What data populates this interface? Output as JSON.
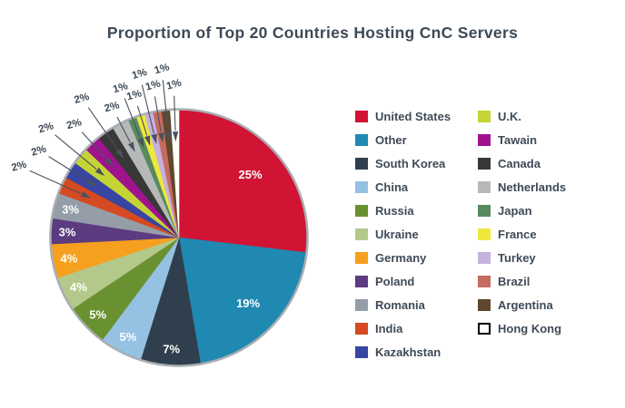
{
  "figure": {
    "background": "#FFFFFF"
  },
  "title": {
    "text": "Proportion of Top 20 Countries Hosting CnC Servers",
    "color": "#3E4A57"
  },
  "styles": {
    "slice_label_color": "#FFFFFF",
    "callout_label_color": "#3E4A57",
    "leader_line_color": "#49525C",
    "pie_rim_color": "#A9ADB2",
    "legend_text_color": "#3E4A57"
  },
  "chart_data": {
    "type": "pie",
    "title": "Proportion of Top 20 Countries Hosting CnC Servers",
    "unit": "%",
    "start_angle_deg": 0,
    "direction": "clockwise",
    "legend_position": "right",
    "legend_columns": 2,
    "legend_column_split": 11,
    "slices": [
      {
        "label": "United States",
        "value": 25,
        "color": "#D11434"
      },
      {
        "label": "Other",
        "value": 19,
        "color": "#1F89B2"
      },
      {
        "label": "South Korea",
        "value": 7,
        "color": "#2F3F4D"
      },
      {
        "label": "China",
        "value": 5,
        "color": "#95C1E3"
      },
      {
        "label": "Russia",
        "value": 5,
        "color": "#6A9130"
      },
      {
        "label": "Ukraine",
        "value": 4,
        "color": "#B3C98B"
      },
      {
        "label": "Germany",
        "value": 4,
        "color": "#F5A01F"
      },
      {
        "label": "Poland",
        "value": 3,
        "color": "#5C3B80"
      },
      {
        "label": "Romania",
        "value": 3,
        "color": "#959EA8"
      },
      {
        "label": "India",
        "value": 2,
        "color": "#D54A21"
      },
      {
        "label": "Kazakhstan",
        "value": 2,
        "color": "#3845A2"
      },
      {
        "label": "U.K.",
        "value": 2,
        "color": "#C4D434"
      },
      {
        "label": "Tawain",
        "value": 2,
        "color": "#A0138E"
      },
      {
        "label": "Canada",
        "value": 2,
        "color": "#383838"
      },
      {
        "label": "Netherlands",
        "value": 2,
        "color": "#B7B9B8"
      },
      {
        "label": "Japan",
        "value": 1,
        "color": "#588A60"
      },
      {
        "label": "France",
        "value": 1,
        "color": "#EFE73C"
      },
      {
        "label": "Turkey",
        "value": 1,
        "color": "#C5B2DC"
      },
      {
        "label": "Brazil",
        "value": 1,
        "color": "#C76A5F"
      },
      {
        "label": "Argentina",
        "value": 1,
        "color": "#5F482D"
      },
      {
        "label": "Hong Kong",
        "value": 1,
        "color": "#FFFFFF",
        "swatch_border": "#000000"
      }
    ]
  }
}
